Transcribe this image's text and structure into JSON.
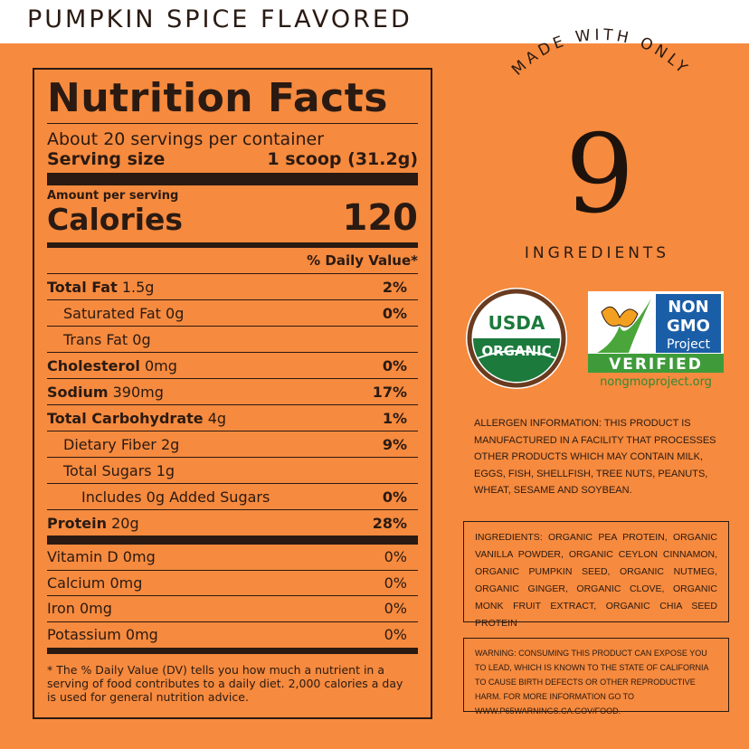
{
  "header": {
    "title": "PUMPKIN SPICE FLAVORED"
  },
  "nutrition": {
    "title": "Nutrition Facts",
    "servings": "About 20 servings per container",
    "serving_size_label": "Serving size",
    "serving_size": "1 scoop (31.2g)",
    "amount_per_serving": "Amount per serving",
    "calories_label": "Calories",
    "calories": 120,
    "daily_value_header": "% Daily Value*",
    "rows": [
      {
        "name": "Total Fat",
        "amount": "1.5g",
        "dv": "2%"
      },
      {
        "name": "Saturated Fat",
        "amount": "0g",
        "dv": "0%"
      },
      {
        "name": "Trans Fat",
        "amount": "0g"
      },
      {
        "name": "Cholesterol",
        "amount": "0mg",
        "dv": "0%"
      },
      {
        "name": "Sodium",
        "amount": "390mg",
        "dv": "17%"
      },
      {
        "name": "Total Carbohydrate",
        "amount": "4g",
        "dv": "1%"
      },
      {
        "name": "Dietary Fiber",
        "amount": "2g",
        "dv": "9%"
      },
      {
        "name": "Total Sugars",
        "amount": "1g"
      },
      {
        "name": "Includes 0g Added Sugars",
        "dv": "0%"
      },
      {
        "name": "Protein",
        "amount": "20g",
        "dv": "28%"
      }
    ],
    "vitamins": [
      {
        "name": "Vitamin D",
        "amount": "0mg",
        "dv": "0%"
      },
      {
        "name": "Calcium",
        "amount": "0mg",
        "dv": "0%"
      },
      {
        "name": "Iron",
        "amount": "0mg",
        "dv": "0%"
      },
      {
        "name": "Potassium",
        "amount": "0mg",
        "dv": "0%"
      }
    ],
    "footnote": "* The % Daily Value (DV) tells you how much a nutrient in a serving of food contributes to a daily diet. 2,000 calories a day is used for general nutrition advice."
  },
  "badge": {
    "top": "MADE WITH ONLY",
    "number": 9,
    "bottom": "INGREDIENTS"
  },
  "usda": {
    "line1": "USDA",
    "line2": "ORGANIC"
  },
  "nongmo": {
    "line1": "NON",
    "line2": "GMO",
    "line3": "Project",
    "verified": "VERIFIED",
    "url": "nongmoproject.org"
  },
  "allergen": "ALLERGEN INFORMATION: THIS PRODUCT IS MANUFACTURED IN A FACILITY THAT PROCESSES OTHER PRODUCTS WHICH MAY CONTAIN MILK, EGGS, FISH, SHELLFISH, TREE NUTS, PEANUTS, WHEAT, SESAME AND SOYBEAN.",
  "ingredients": "INGREDIENTS: ORGANIC PEA PROTEIN, ORGANIC VANILLA POWDER, ORGANIC CEYLON CINNAMON, ORGANIC PUMPKIN SEED, ORGANIC NUTMEG, ORGANIC GINGER, ORGANIC CLOVE, ORGANIC MONK FRUIT EXTRACT, ORGANIC CHIA SEED PROTEIN",
  "warning": "WARNING: CONSUMING THIS PRODUCT CAN EXPOSE YOU TO LEAD, WHICH IS KNOWN TO THE STATE OF CALIFORNIA TO CAUSE BIRTH DEFECTS OR OTHER REPRODUCTIVE HARM. FOR MORE INFORMATION GO TO WWW.P65WARNINGS.CA.GOV/FOOD."
}
